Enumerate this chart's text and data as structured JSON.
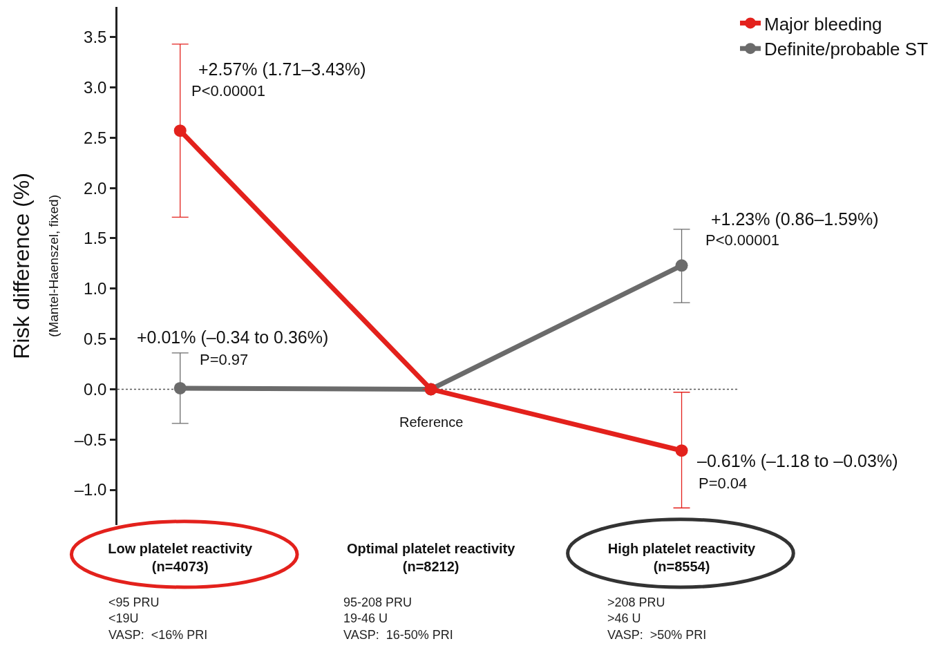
{
  "chart_data": {
    "type": "line",
    "ylabel": "Risk difference (%)\n(Mantel-Haenszel, fixed)",
    "categories": [
      "Low platelet reactivity\n(n=4073)",
      "Optimal platelet reactivity\n(n=8212)",
      "High platelet reactivity\n(n=8554)"
    ],
    "series": [
      {
        "name": "Major bleeding",
        "color": "#e3211c",
        "values": [
          2.57,
          0,
          -0.61
        ],
        "errors": [
          [
            1.71,
            3.43
          ],
          null,
          [
            -1.18,
            -0.03
          ]
        ]
      },
      {
        "name": "Definite/probable ST",
        "color": "#6b6b6b",
        "values": [
          0.01,
          0,
          1.23
        ],
        "errors": [
          [
            -0.34,
            0.36
          ],
          null,
          [
            0.86,
            1.59
          ]
        ]
      }
    ],
    "ylim": [
      -1.35,
      3.8
    ],
    "yticks": [
      {
        "value": -1,
        "label": "–1.0"
      },
      {
        "value": -0.5,
        "label": "–0.5"
      },
      {
        "value": 0,
        "label": "0.0"
      },
      {
        "value": 0.5,
        "label": "0.5"
      },
      {
        "value": 1,
        "label": "1.0"
      },
      {
        "value": 1.5,
        "label": "1.5"
      },
      {
        "value": 2,
        "label": "2.0"
      },
      {
        "value": 2.5,
        "label": "2.5"
      },
      {
        "value": 3,
        "label": "3.0"
      },
      {
        "value": 3.5,
        "label": "3.5"
      }
    ],
    "ref_lines": [
      {
        "axis": "y",
        "value": 0,
        "line_style": "dotted",
        "color": "#555555"
      }
    ],
    "annotations": [
      "+2.57% (1.71–3.43%)",
      {
        "text": "P<0.00001",
        "x": "Low platelet reactivity\n(n=4073)",
        "y": 2.57
      },
      {
        "text": "+0.01% (–0.34 to 0.36%)",
        "x": "Low platelet reactivity\n(n=4073)",
        "y": 0.01
      },
      {
        "text": "P=0.97",
        "x": "Low platelet reactivity\n(n=4073)",
        "y": 0.01
      },
      {
        "text": "+1.23% (0.86–1.59%)",
        "x": "High platelet reactivity\n(n=8554)",
        "y": 1.23
      },
      {
        "text": "P<0.00001",
        "x": "High platelet reactivity\n(n=8554)",
        "y": 1.23
      },
      {
        "text": "–0.61% (–1.18 to –0.03%)",
        "x": "High platelet reactivity\n(n=8554)",
        "y": -0.61
      },
      {
        "text": "P=0.04",
        "x": "High platelet reactivity\n(n=8554)",
        "y": -0.61
      },
      {
        "text": "Reference",
        "x": "Optimal platelet reactivity\n(n=8212)",
        "y": 0
      },
      "<95 PRU\n<19U\nVASP:  <16% PRI",
      "95-208 PRU\n19-46 U\nVASP:  16-50% PRI",
      ">208 PRU\n>46 U\nVASP:  >50% PRI"
    ],
    "grid": false,
    "legend": "top right",
    "marker": "circle",
    "line_style": "solid"
  }
}
